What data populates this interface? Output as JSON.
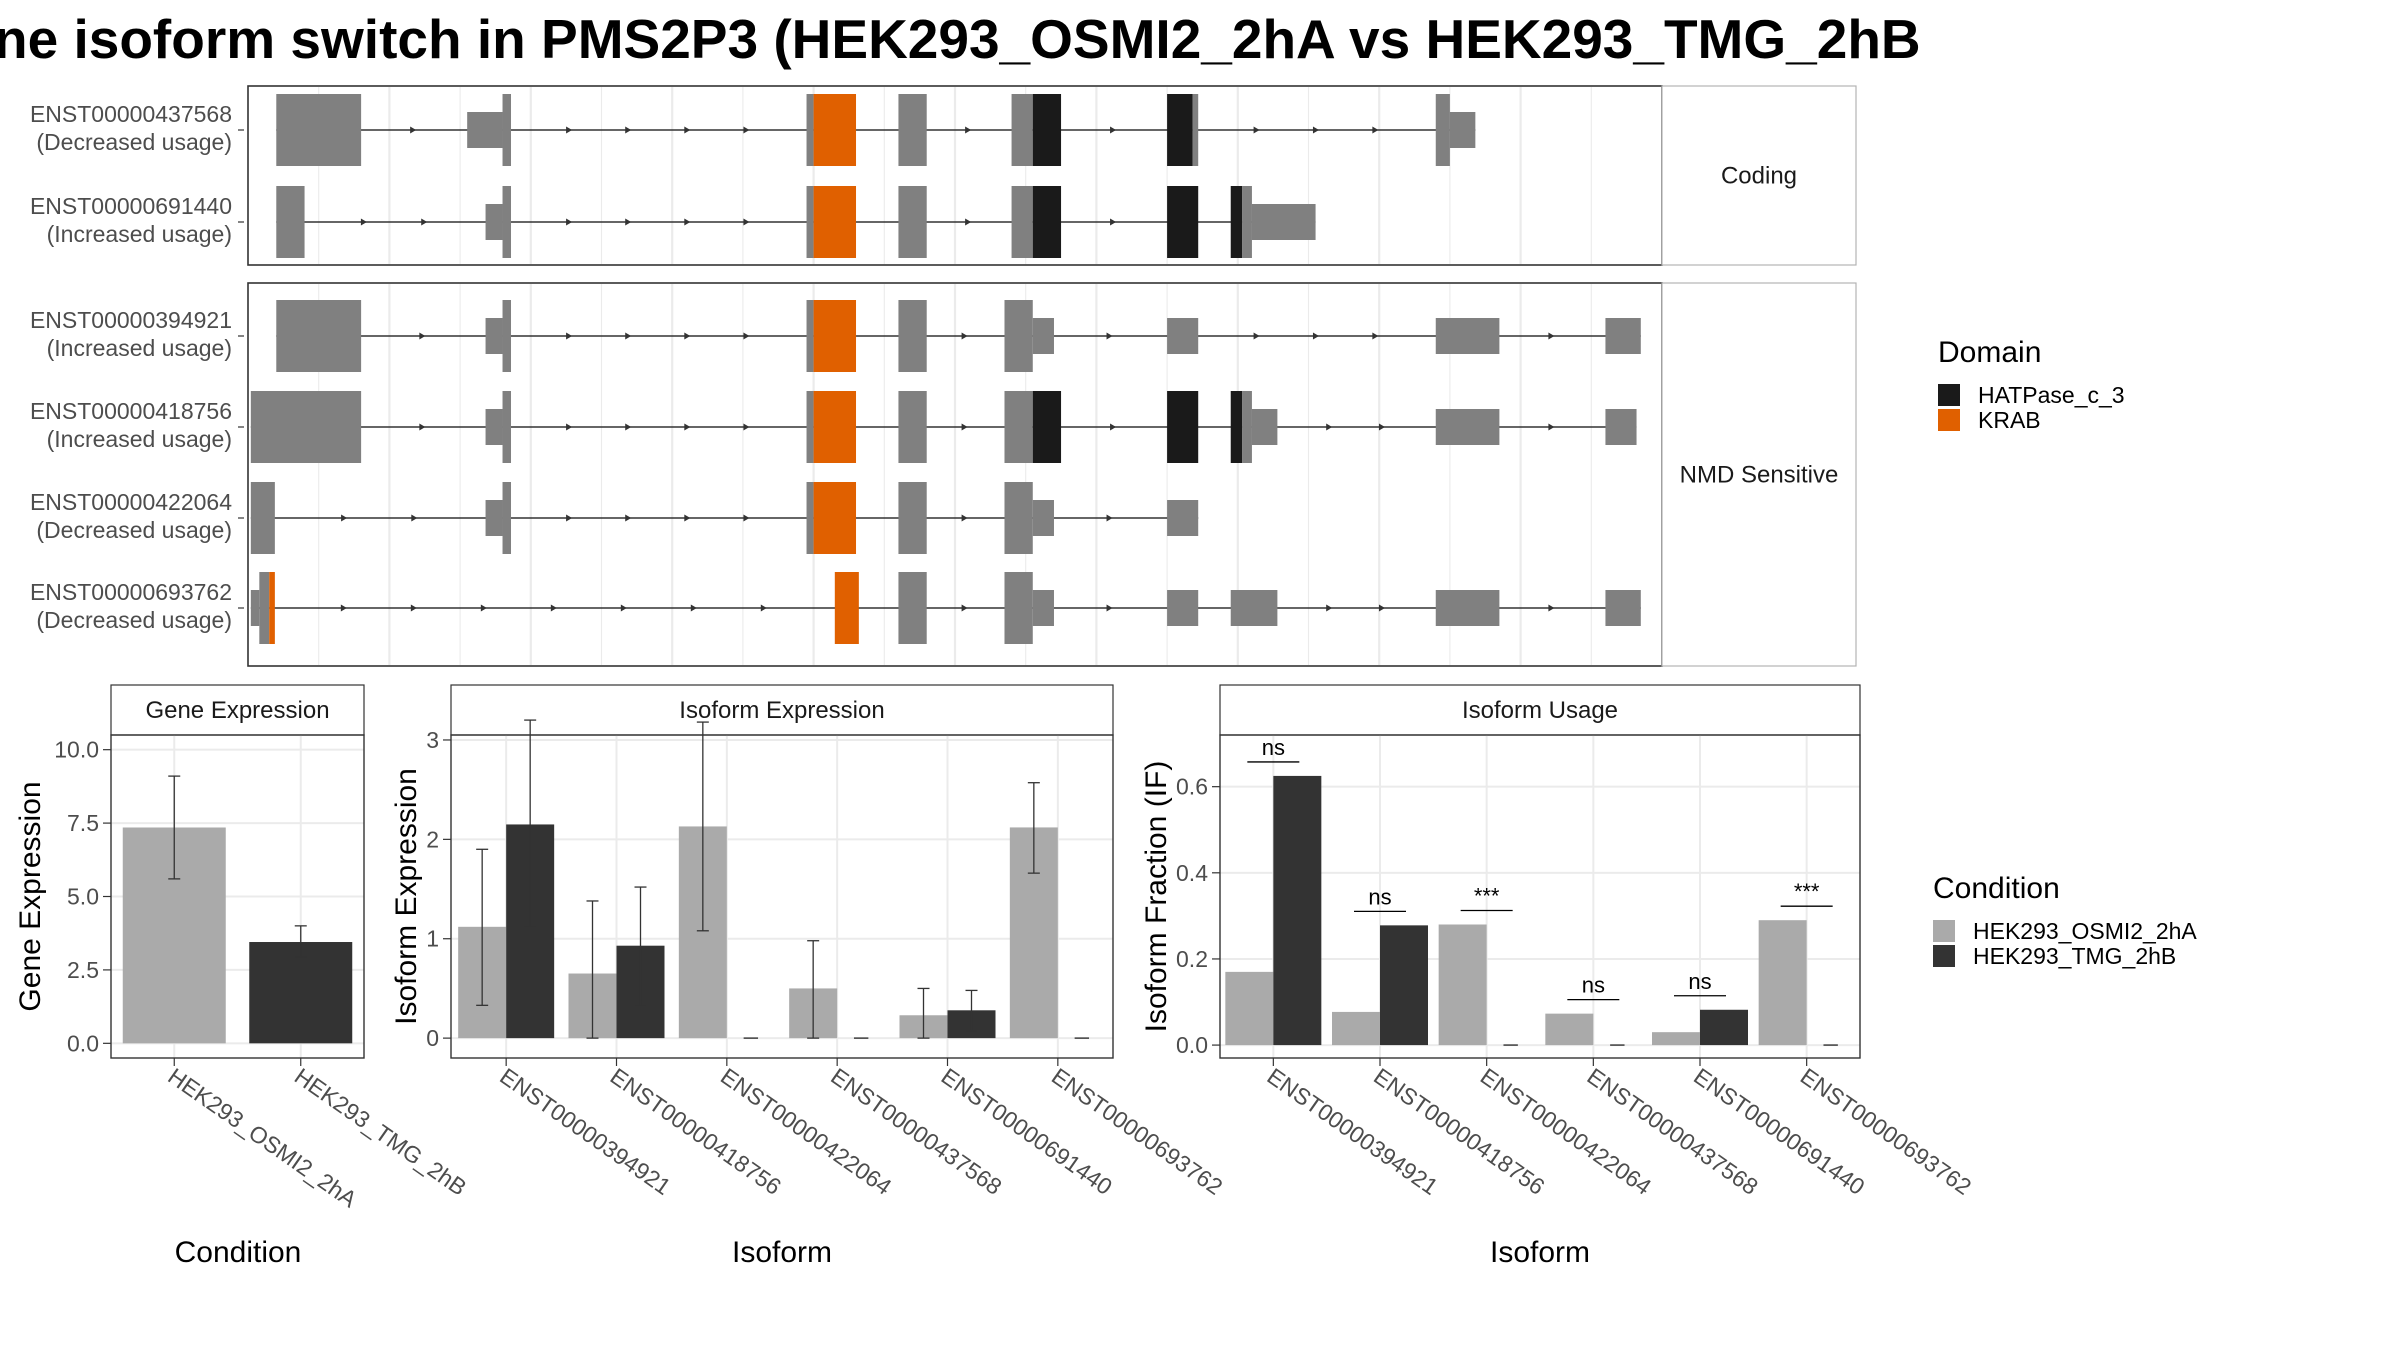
{
  "title": "ne isoform switch in PMS2P3 (HEK293_OSMI2_2hA vs HEK293_TMG_2hB",
  "colors": {
    "exon": "#808080",
    "HATPase_c_3": "#1a1a1a",
    "KRAB": "#e06000",
    "cond_a": "#aaaaaa",
    "cond_b": "#333333"
  },
  "structure": {
    "coord_range": [
      0,
      100
    ],
    "panels": [
      {
        "strip": "Coding",
        "isoforms": [
          {
            "id": "ENST00000437568",
            "usage": "(Decreased usage)",
            "features": [
              {
                "s": 2.0,
                "e": 8.0,
                "f": "exon"
              },
              {
                "s": 15.5,
                "e": 18.0,
                "f": "utr"
              },
              {
                "s": 18.0,
                "e": 18.6,
                "f": "exon"
              },
              {
                "s": 39.5,
                "e": 40.0,
                "f": "exon"
              },
              {
                "s": 40.0,
                "e": 43.0,
                "f": "KRAB"
              },
              {
                "s": 46.0,
                "e": 48.0,
                "f": "exon"
              },
              {
                "s": 54.0,
                "e": 55.5,
                "f": "exon"
              },
              {
                "s": 55.5,
                "e": 57.5,
                "f": "HATPase_c_3"
              },
              {
                "s": 65.0,
                "e": 66.8,
                "f": "HATPase_c_3"
              },
              {
                "s": 66.8,
                "e": 67.2,
                "f": "exon"
              },
              {
                "s": 84.0,
                "e": 85.0,
                "f": "exon"
              },
              {
                "s": 85.0,
                "e": 86.8,
                "f": "utr"
              }
            ]
          },
          {
            "id": "ENST00000691440",
            "usage": "(Increased usage)",
            "features": [
              {
                "s": 2.0,
                "e": 4.0,
                "f": "exon"
              },
              {
                "s": 16.8,
                "e": 18.0,
                "f": "utr"
              },
              {
                "s": 18.0,
                "e": 18.6,
                "f": "exon"
              },
              {
                "s": 39.5,
                "e": 40.0,
                "f": "exon"
              },
              {
                "s": 40.0,
                "e": 43.0,
                "f": "KRAB"
              },
              {
                "s": 46.0,
                "e": 48.0,
                "f": "exon"
              },
              {
                "s": 54.0,
                "e": 55.5,
                "f": "exon"
              },
              {
                "s": 55.5,
                "e": 57.5,
                "f": "HATPase_c_3"
              },
              {
                "s": 65.0,
                "e": 67.2,
                "f": "HATPase_c_3"
              },
              {
                "s": 69.5,
                "e": 70.3,
                "f": "HATPase_c_3"
              },
              {
                "s": 70.3,
                "e": 71.0,
                "f": "exon"
              },
              {
                "s": 71.0,
                "e": 75.5,
                "f": "utr"
              }
            ]
          }
        ]
      },
      {
        "strip": "NMD Sensitive",
        "isoforms": [
          {
            "id": "ENST00000394921",
            "usage": "(Increased usage)",
            "features": [
              {
                "s": 2.0,
                "e": 8.0,
                "f": "exon"
              },
              {
                "s": 16.8,
                "e": 18.0,
                "f": "utr"
              },
              {
                "s": 18.0,
                "e": 18.6,
                "f": "exon"
              },
              {
                "s": 39.5,
                "e": 40.0,
                "f": "exon"
              },
              {
                "s": 40.0,
                "e": 43.0,
                "f": "KRAB"
              },
              {
                "s": 46.0,
                "e": 48.0,
                "f": "exon"
              },
              {
                "s": 53.5,
                "e": 55.5,
                "f": "exon"
              },
              {
                "s": 55.5,
                "e": 57.0,
                "f": "utr"
              },
              {
                "s": 65.0,
                "e": 67.2,
                "f": "utr"
              },
              {
                "s": 84.0,
                "e": 88.5,
                "f": "utr"
              },
              {
                "s": 96.0,
                "e": 98.5,
                "f": "utr"
              }
            ]
          },
          {
            "id": "ENST00000418756",
            "usage": "(Increased usage)",
            "features": [
              {
                "s": 0.2,
                "e": 8.0,
                "f": "exon"
              },
              {
                "s": 16.8,
                "e": 18.0,
                "f": "utr"
              },
              {
                "s": 18.0,
                "e": 18.6,
                "f": "exon"
              },
              {
                "s": 39.5,
                "e": 40.0,
                "f": "exon"
              },
              {
                "s": 40.0,
                "e": 43.0,
                "f": "KRAB"
              },
              {
                "s": 46.0,
                "e": 48.0,
                "f": "exon"
              },
              {
                "s": 53.5,
                "e": 55.5,
                "f": "exon"
              },
              {
                "s": 55.5,
                "e": 57.5,
                "f": "HATPase_c_3"
              },
              {
                "s": 65.0,
                "e": 67.2,
                "f": "HATPase_c_3"
              },
              {
                "s": 69.5,
                "e": 70.3,
                "f": "HATPase_c_3"
              },
              {
                "s": 70.3,
                "e": 71.0,
                "f": "exon"
              },
              {
                "s": 71.0,
                "e": 72.8,
                "f": "utr"
              },
              {
                "s": 84.0,
                "e": 88.5,
                "f": "utr"
              },
              {
                "s": 96.0,
                "e": 98.2,
                "f": "utr"
              }
            ]
          },
          {
            "id": "ENST00000422064",
            "usage": "(Decreased usage)",
            "features": [
              {
                "s": 0.2,
                "e": 1.9,
                "f": "exon"
              },
              {
                "s": 16.8,
                "e": 18.0,
                "f": "utr"
              },
              {
                "s": 18.0,
                "e": 18.6,
                "f": "exon"
              },
              {
                "s": 39.5,
                "e": 40.0,
                "f": "exon"
              },
              {
                "s": 40.0,
                "e": 43.0,
                "f": "KRAB"
              },
              {
                "s": 46.0,
                "e": 48.0,
                "f": "exon"
              },
              {
                "s": 53.5,
                "e": 55.5,
                "f": "exon"
              },
              {
                "s": 55.5,
                "e": 57.0,
                "f": "utr"
              },
              {
                "s": 65.0,
                "e": 67.2,
                "f": "utr"
              }
            ]
          },
          {
            "id": "ENST00000693762",
            "usage": "(Decreased usage)",
            "features": [
              {
                "s": 0.2,
                "e": 0.8,
                "f": "utr"
              },
              {
                "s": 0.8,
                "e": 1.5,
                "f": "exon"
              },
              {
                "s": 1.5,
                "e": 1.9,
                "f": "KRAB"
              },
              {
                "s": 41.5,
                "e": 43.2,
                "f": "KRAB"
              },
              {
                "s": 46.0,
                "e": 48.0,
                "f": "exon"
              },
              {
                "s": 53.5,
                "e": 55.5,
                "f": "exon"
              },
              {
                "s": 55.5,
                "e": 57.0,
                "f": "utr"
              },
              {
                "s": 65.0,
                "e": 67.2,
                "f": "utr"
              },
              {
                "s": 69.5,
                "e": 72.8,
                "f": "utr"
              },
              {
                "s": 84.0,
                "e": 88.5,
                "f": "utr"
              },
              {
                "s": 96.0,
                "e": 98.5,
                "f": "utr"
              }
            ]
          }
        ]
      }
    ]
  },
  "legend_domain": {
    "title": "Domain",
    "items": [
      {
        "label": "HATPase_c_3",
        "color": "#1a1a1a"
      },
      {
        "label": "KRAB",
        "color": "#e06000"
      }
    ]
  },
  "legend_condition": {
    "title": "Condition",
    "items": [
      {
        "label": "HEK293_OSMI2_2hA",
        "color": "#aaaaaa"
      },
      {
        "label": "HEK293_TMG_2hB",
        "color": "#333333"
      }
    ]
  },
  "chart_data": [
    {
      "type": "bar",
      "strip": "Gene Expression",
      "xlabel": "Condition",
      "ylabel": "Gene Expression",
      "ylim": [
        -0.5,
        10.5
      ],
      "yticks": [
        "0.0",
        "2.5",
        "5.0",
        "7.5",
        "10.0"
      ],
      "categories": [
        "HEK293_OSMI2_2hA",
        "HEK293_TMG_2hB"
      ],
      "values": [
        7.35,
        3.45
      ],
      "error_low": [
        5.6,
        2.95
      ],
      "error_high": [
        9.1,
        4.0
      ]
    },
    {
      "type": "bar",
      "strip": "Isoform Expression",
      "xlabel": "Isoform",
      "ylabel": "Isoform Expression",
      "ylim": [
        -0.2,
        3.05
      ],
      "yticks": [
        "0",
        "1",
        "2",
        "3"
      ],
      "categories": [
        "ENST00000394921",
        "ENST00000418756",
        "ENST00000422064",
        "ENST00000437568",
        "ENST00000691440",
        "ENST00000693762"
      ],
      "series": [
        {
          "name": "HEK293_OSMI2_2hA",
          "values": [
            1.12,
            0.65,
            2.13,
            0.5,
            0.23,
            2.12
          ],
          "error_low": [
            0.33,
            0.0,
            1.08,
            0.0,
            0.0,
            1.66
          ],
          "error_high": [
            1.9,
            1.38,
            3.18,
            0.98,
            0.5,
            2.57
          ]
        },
        {
          "name": "HEK293_TMG_2hB",
          "values": [
            2.15,
            0.93,
            0.0,
            0.0,
            0.28,
            0.0
          ],
          "error_low": [
            1.12,
            0.33,
            0.0,
            0.0,
            0.07,
            0.0
          ],
          "error_high": [
            3.2,
            1.52,
            0.0,
            0.0,
            0.48,
            0.0
          ]
        }
      ]
    },
    {
      "type": "bar",
      "strip": "Isoform Usage",
      "xlabel": "Isoform",
      "ylabel": "Isoform Fraction (IF)",
      "ylim": [
        -0.03,
        0.72
      ],
      "yticks": [
        "0.0",
        "0.2",
        "0.4",
        "0.6"
      ],
      "categories": [
        "ENST00000394921",
        "ENST00000418756",
        "ENST00000422064",
        "ENST00000437568",
        "ENST00000691440",
        "ENST00000693762"
      ],
      "series": [
        {
          "name": "HEK293_OSMI2_2hA",
          "values": [
            0.17,
            0.077,
            0.28,
            0.073,
            0.03,
            0.29
          ]
        },
        {
          "name": "HEK293_TMG_2hB",
          "values": [
            0.625,
            0.278,
            0.0,
            0.0,
            0.082,
            0.0
          ]
        }
      ],
      "significance": [
        "ns",
        "ns",
        "***",
        "ns",
        "ns",
        "***"
      ]
    }
  ]
}
